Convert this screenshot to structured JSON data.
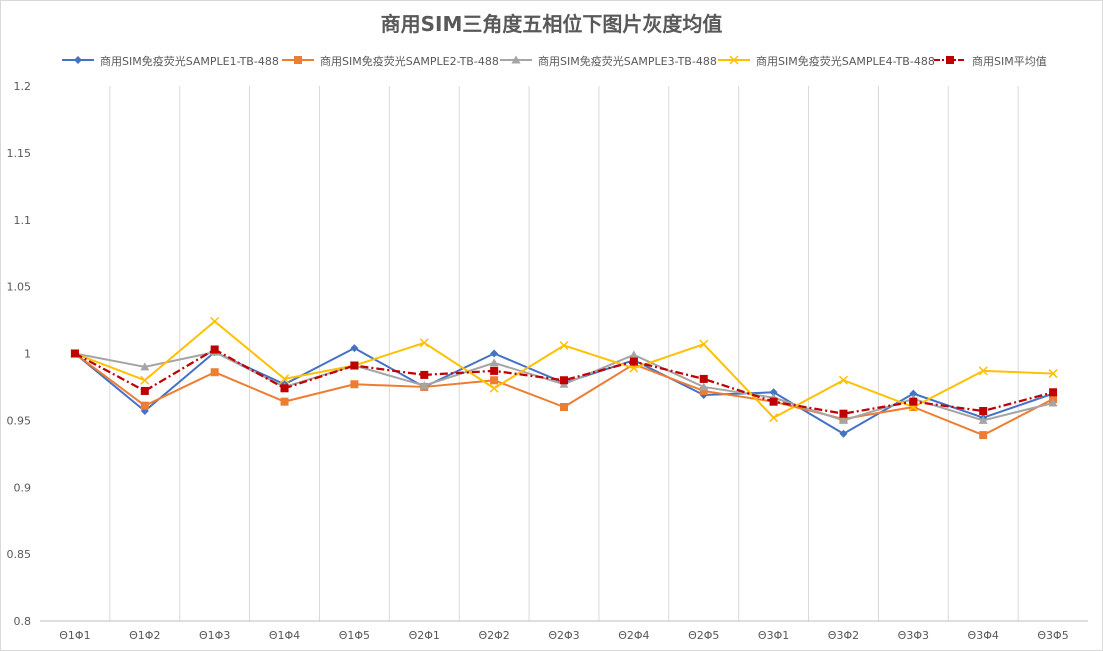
{
  "chart_data": {
    "type": "line",
    "title": "商用SIM三角度五相位下图片灰度均值",
    "xlabel": "",
    "ylabel": "",
    "categories": [
      "Θ1Φ1",
      "Θ1Φ2",
      "Θ1Φ3",
      "Θ1Φ4",
      "Θ1Φ5",
      "Θ2Φ1",
      "Θ2Φ2",
      "Θ2Φ3",
      "Θ2Φ4",
      "Θ2Φ5",
      "Θ3Φ1",
      "Θ3Φ2",
      "Θ3Φ3",
      "Θ3Φ4",
      "Θ3Φ5"
    ],
    "ylim": [
      0.8,
      1.2
    ],
    "yticks": [
      "0.8",
      "0.85",
      "0.9",
      "0.95",
      "1",
      "1.05",
      "1.1",
      "1.15",
      "1.2"
    ],
    "grid": "vertical",
    "legend_position": "top",
    "series": [
      {
        "name": "商用SIM免疫荧光SAMPLE1-TB-488",
        "color": "#4472c4",
        "marker": "diamond",
        "dash": "solid",
        "values": [
          1.0,
          0.957,
          1.001,
          0.977,
          1.004,
          0.975,
          1.0,
          0.978,
          0.995,
          0.969,
          0.971,
          0.94,
          0.97,
          0.952,
          0.97
        ]
      },
      {
        "name": "商用SIM免疫荧光SAMPLE2-TB-488",
        "color": "#ed7d31",
        "marker": "square",
        "dash": "solid",
        "values": [
          1.0,
          0.961,
          0.986,
          0.964,
          0.977,
          0.975,
          0.98,
          0.96,
          0.992,
          0.972,
          0.964,
          0.951,
          0.96,
          0.939,
          0.966
        ]
      },
      {
        "name": "商用SIM免疫荧光SAMPLE3-TB-488",
        "color": "#a5a5a5",
        "marker": "triangle",
        "dash": "solid",
        "values": [
          1.0,
          0.99,
          1.001,
          0.975,
          0.991,
          0.976,
          0.993,
          0.977,
          0.999,
          0.975,
          0.967,
          0.95,
          0.966,
          0.95,
          0.963
        ]
      },
      {
        "name": "商用SIM免疫荧光SAMPLE4-TB-488",
        "color": "#ffc000",
        "marker": "x",
        "dash": "solid",
        "values": [
          1.0,
          0.98,
          1.024,
          0.981,
          0.991,
          1.008,
          0.974,
          1.006,
          0.989,
          1.007,
          0.952,
          0.98,
          0.96,
          0.987,
          0.985
        ]
      },
      {
        "name": "商用SIM平均值",
        "color": "#c00000",
        "marker": "square",
        "dash": "dashdot",
        "values": [
          1.0,
          0.972,
          1.003,
          0.974,
          0.991,
          0.984,
          0.987,
          0.98,
          0.994,
          0.981,
          0.964,
          0.955,
          0.964,
          0.957,
          0.971
        ]
      }
    ]
  }
}
